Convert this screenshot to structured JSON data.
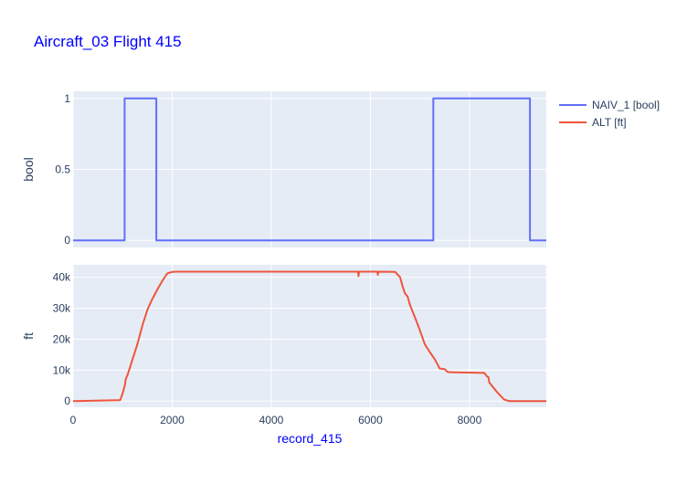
{
  "title": "Aircraft_03 Flight 415",
  "colors": {
    "title": "#0000ff",
    "xlabel": "#0000ff",
    "plot_bg": "#e5ecf6",
    "grid": "#ffffff",
    "tick_text": "#2a3f5f",
    "naiv": "#636efa",
    "alt": "#ef553b"
  },
  "legend_position": "top-right",
  "chart_data": [
    {
      "type": "line",
      "xlabel": "record_415",
      "ylabel": "bool",
      "xlim": [
        0,
        9550
      ],
      "ylim": [
        -0.05,
        1.05
      ],
      "y_ticks": [
        0,
        0.5,
        1
      ],
      "y_tick_labels": [
        "0",
        "0.5",
        "1"
      ],
      "grid": true,
      "series": [
        {
          "name": "NAIV_1 [bool]",
          "color": "#636efa",
          "shape": "step",
          "x": [
            0,
            1040,
            1040,
            1680,
            1680,
            7270,
            7270,
            9220,
            9220,
            9550
          ],
          "y": [
            0,
            0,
            1,
            1,
            0,
            0,
            1,
            1,
            0,
            0
          ]
        }
      ]
    },
    {
      "type": "line",
      "xlabel": "record_415",
      "ylabel": "ft",
      "xlim": [
        0,
        9550
      ],
      "ylim": [
        -2000,
        44000
      ],
      "y_ticks": [
        0,
        10000,
        20000,
        30000,
        40000
      ],
      "y_tick_labels": [
        "0",
        "10k",
        "20k",
        "30k",
        "40k"
      ],
      "x_ticks": [
        0,
        2000,
        4000,
        6000,
        8000
      ],
      "x_tick_labels": [
        "0",
        "2000",
        "4000",
        "6000",
        "8000"
      ],
      "grid": true,
      "series": [
        {
          "name": "ALT [ft]",
          "color": "#ef553b",
          "x": [
            0,
            950,
            1000,
            1050,
            1060,
            1100,
            1200,
            1300,
            1400,
            1500,
            1600,
            1700,
            1800,
            1900,
            1950,
            2000,
            2100,
            5750,
            5760,
            5770,
            5780,
            6140,
            6150,
            6160,
            6170,
            6500,
            6600,
            6650,
            6700,
            6750,
            6800,
            6900,
            7000,
            7100,
            7200,
            7300,
            7400,
            7500,
            7550,
            7600,
            7650,
            8300,
            8350,
            8380,
            8400,
            8450,
            8550,
            8700,
            8800,
            8850,
            9000,
            9550
          ],
          "y": [
            0,
            300,
            2500,
            5500,
            7000,
            8500,
            13500,
            18500,
            24500,
            29500,
            33000,
            36000,
            38800,
            41200,
            41500,
            41700,
            41800,
            41800,
            40300,
            41800,
            41800,
            41800,
            40800,
            41800,
            41800,
            41700,
            40000,
            37000,
            34700,
            33800,
            31000,
            27000,
            22800,
            18300,
            15800,
            13500,
            10500,
            10300,
            9500,
            9300,
            9300,
            9100,
            8000,
            7800,
            6000,
            5000,
            3000,
            500,
            0,
            0,
            0,
            0
          ]
        }
      ]
    }
  ]
}
